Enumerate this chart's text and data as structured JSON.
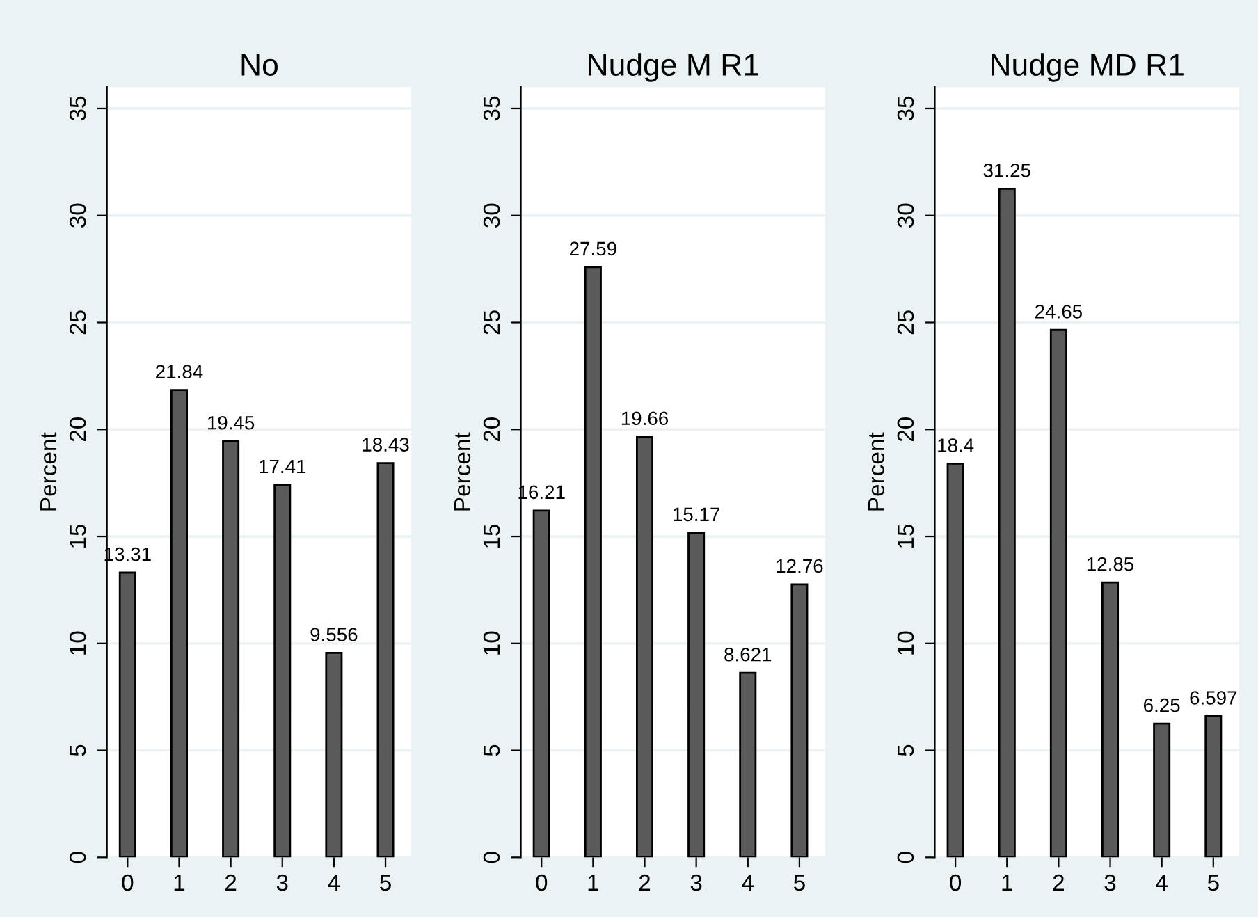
{
  "chart_data": [
    {
      "type": "bar",
      "title": "No",
      "ylabel": "Percent",
      "x": [
        0,
        1,
        2,
        3,
        4,
        5
      ],
      "values": [
        13.31,
        21.84,
        19.45,
        17.41,
        9.556,
        18.43
      ],
      "color": "#5a5a5a",
      "xlim": [
        -0.4,
        5.5
      ],
      "xticks": [
        0,
        1,
        2,
        3,
        4,
        5
      ],
      "ylim": [
        0,
        36
      ],
      "yticks": [
        0,
        5,
        10,
        15,
        20,
        25,
        30,
        35
      ],
      "grid": "y",
      "data_labels": true,
      "legend": false
    },
    {
      "type": "bar",
      "title": "Nudge M R1",
      "ylabel": "Percent",
      "x": [
        0,
        1,
        2,
        3,
        4,
        5
      ],
      "values": [
        16.21,
        27.59,
        19.66,
        15.17,
        8.621,
        12.76
      ],
      "color": "#5a5a5a",
      "xlim": [
        -0.4,
        5.5
      ],
      "xticks": [
        0,
        1,
        2,
        3,
        4,
        5
      ],
      "ylim": [
        0,
        36
      ],
      "yticks": [
        0,
        5,
        10,
        15,
        20,
        25,
        30,
        35
      ],
      "grid": "y",
      "data_labels": true,
      "legend": false
    },
    {
      "type": "bar",
      "title": "Nudge MD R1",
      "ylabel": "Percent",
      "x": [
        0,
        1,
        2,
        3,
        4,
        5
      ],
      "values": [
        18.4,
        31.25,
        24.65,
        12.85,
        6.25,
        6.597
      ],
      "color": "#5a5a5a",
      "xlim": [
        -0.4,
        5.5
      ],
      "xticks": [
        0,
        1,
        2,
        3,
        4,
        5
      ],
      "ylim": [
        0,
        36
      ],
      "yticks": [
        0,
        5,
        10,
        15,
        20,
        25,
        30,
        35
      ],
      "grid": "y",
      "data_labels": true,
      "legend": false
    }
  ]
}
